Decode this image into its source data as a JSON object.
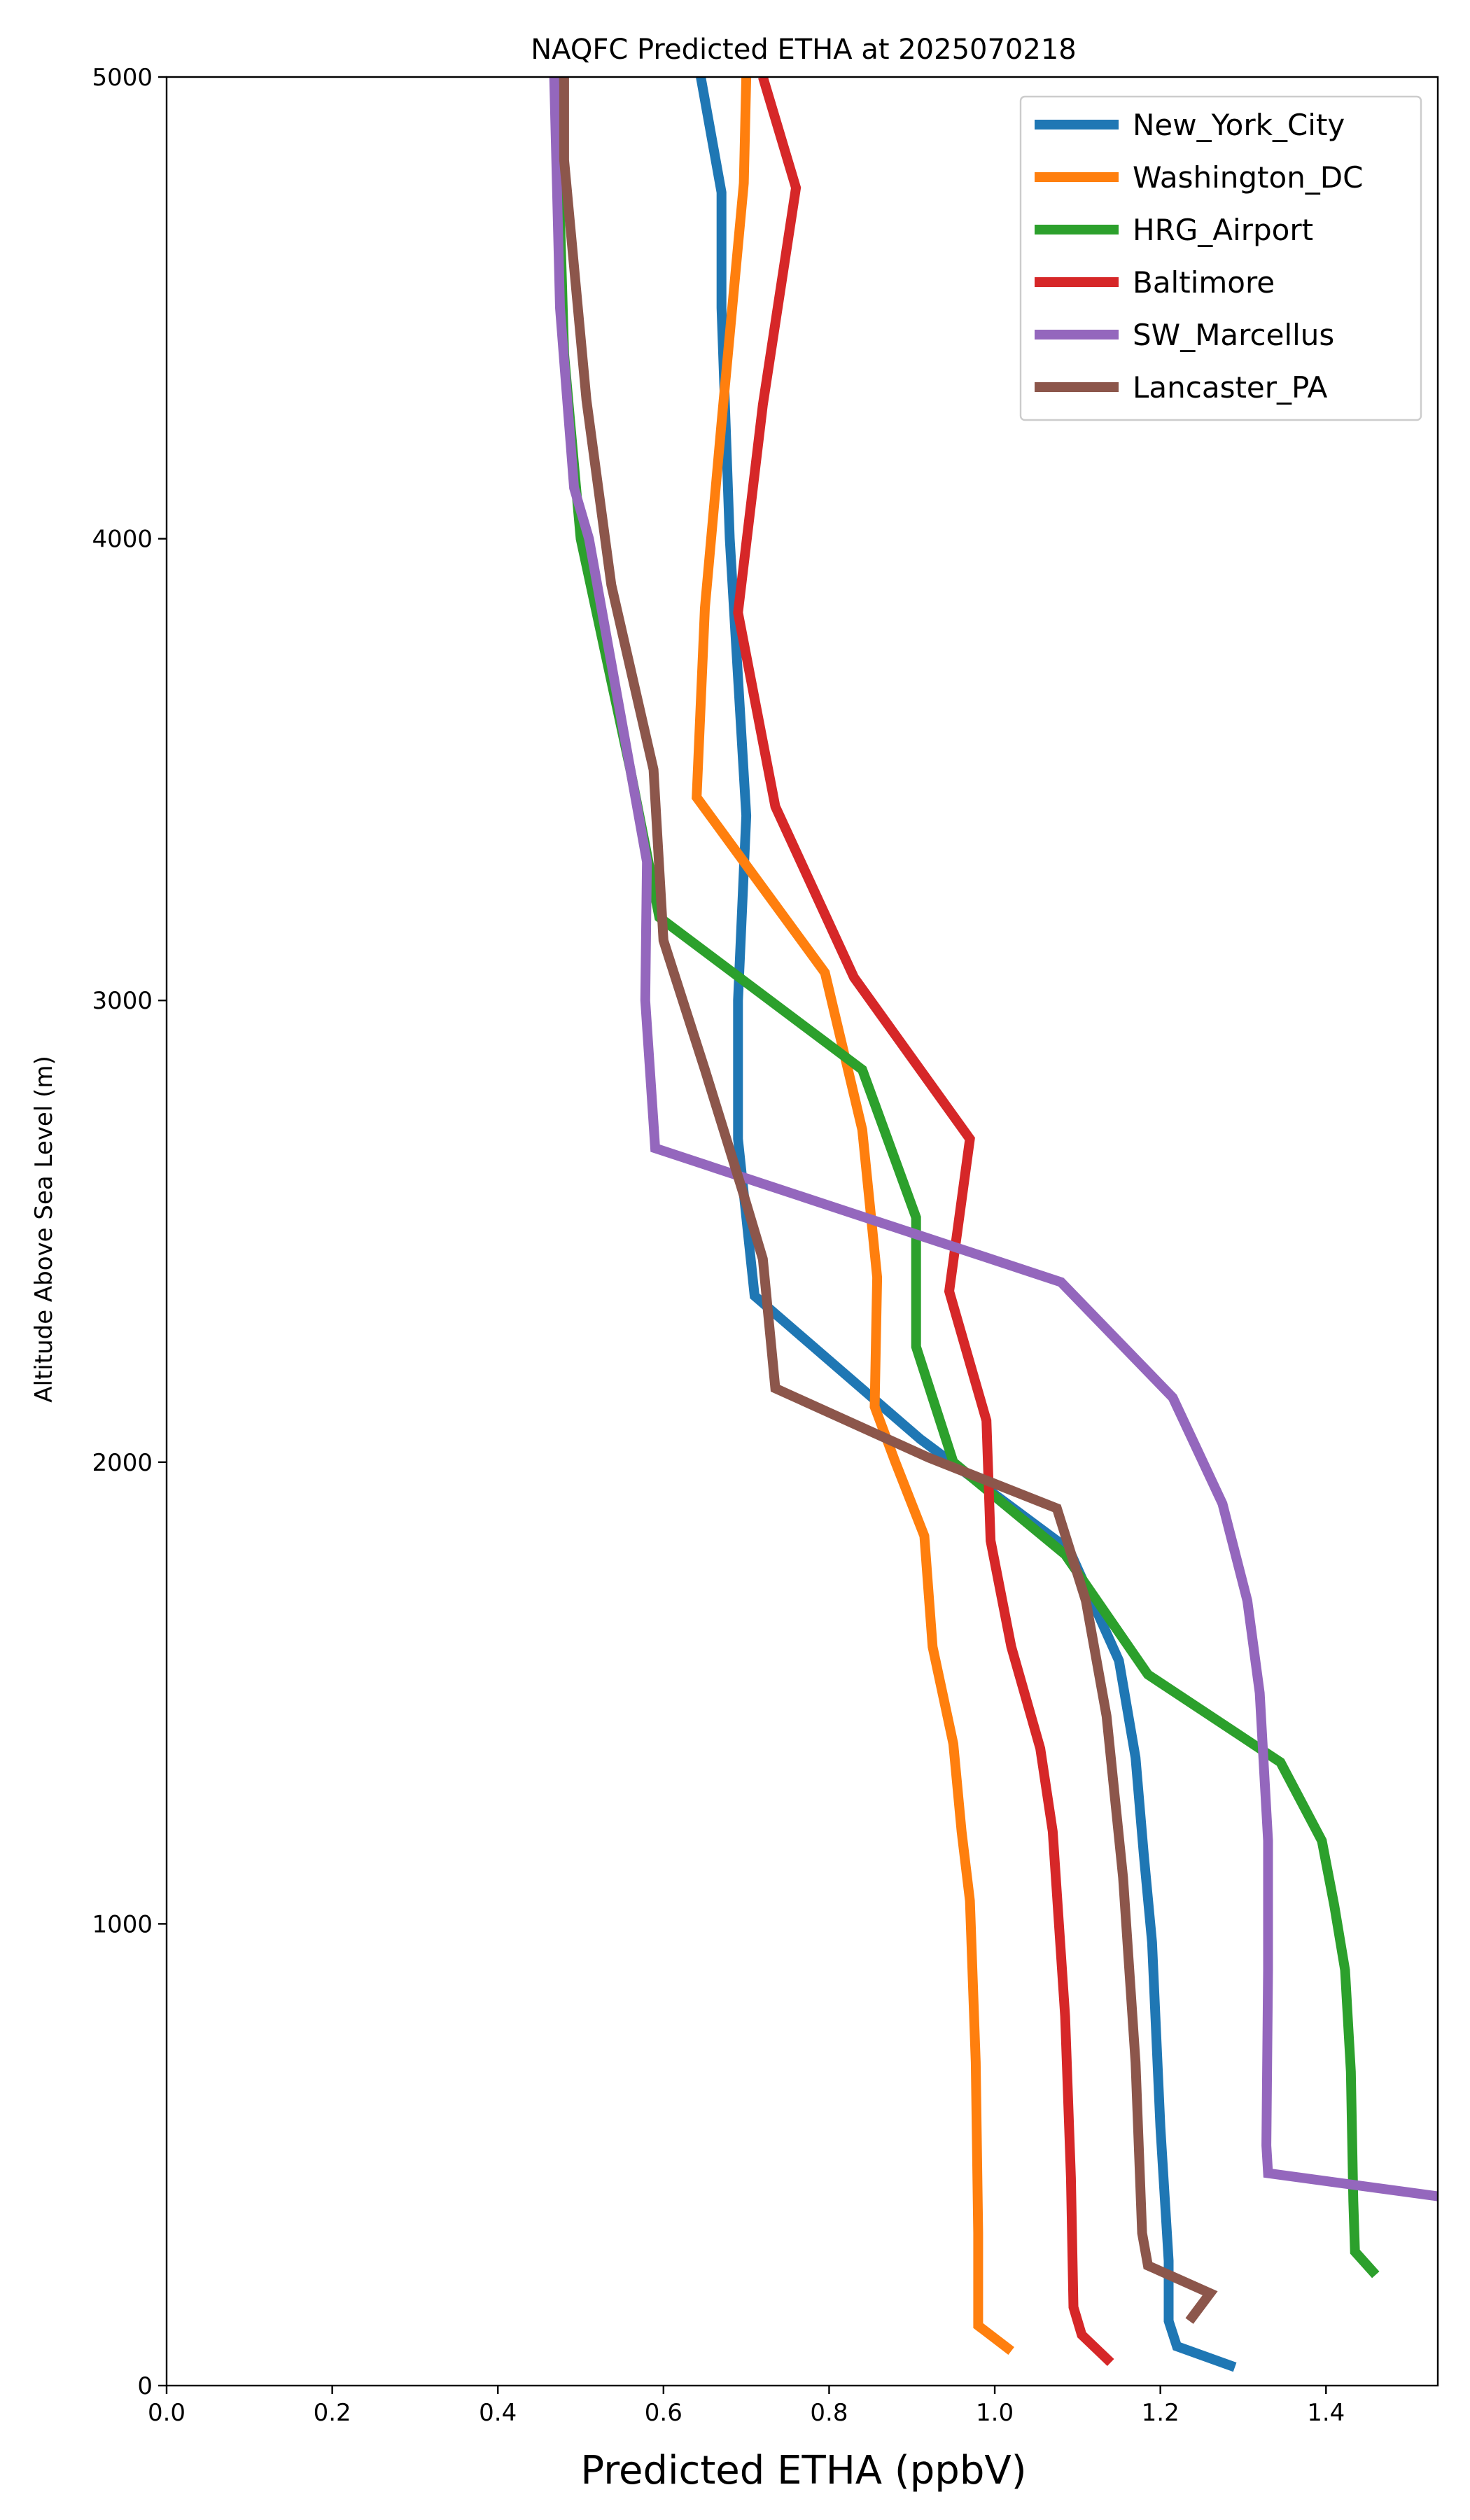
{
  "chart_data": {
    "type": "line",
    "title": "NAQFC Predicted ETHA at 2025070218",
    "xlabel": "Predicted ETHA (ppbV)",
    "ylabel": "Altitude Above Sea Level (m)",
    "xlim": [
      0.0,
      1.535
    ],
    "ylim": [
      0,
      5000
    ],
    "xticks": [
      0.0,
      0.2,
      0.4,
      0.6,
      0.8,
      1.0,
      1.2,
      1.4
    ],
    "xtick_labels": [
      "0.0",
      "0.2",
      "0.4",
      "0.6",
      "0.8",
      "1.0",
      "1.2",
      "1.4"
    ],
    "yticks": [
      0,
      1000,
      2000,
      3000,
      4000,
      5000
    ],
    "ytick_labels": [
      "0",
      "1000",
      "2000",
      "3000",
      "4000",
      "5000"
    ],
    "grid": false,
    "legend_position": "top-right",
    "series": [
      {
        "name": "New_York_City",
        "color": "#1f77b4",
        "points": [
          [
            1.29,
            40
          ],
          [
            1.22,
            85
          ],
          [
            1.21,
            140
          ],
          [
            1.21,
            270
          ],
          [
            1.2,
            560
          ],
          [
            1.19,
            960
          ],
          [
            1.18,
            1150
          ],
          [
            1.17,
            1360
          ],
          [
            1.15,
            1570
          ],
          [
            1.09,
            1810
          ],
          [
            0.91,
            2050
          ],
          [
            0.71,
            2360
          ],
          [
            0.69,
            2700
          ],
          [
            0.69,
            3000
          ],
          [
            0.7,
            3400
          ],
          [
            0.68,
            4000
          ],
          [
            0.67,
            4500
          ],
          [
            0.67,
            4750
          ],
          [
            0.645,
            5000
          ]
        ]
      },
      {
        "name": "Washington_DC",
        "color": "#ff7f0e",
        "points": [
          [
            1.02,
            75
          ],
          [
            0.98,
            130
          ],
          [
            0.98,
            330
          ],
          [
            0.977,
            700
          ],
          [
            0.97,
            1050
          ],
          [
            0.96,
            1200
          ],
          [
            0.95,
            1390
          ],
          [
            0.925,
            1600
          ],
          [
            0.915,
            1840
          ],
          [
            0.88,
            2000
          ],
          [
            0.855,
            2120
          ],
          [
            0.858,
            2400
          ],
          [
            0.84,
            2720
          ],
          [
            0.795,
            3060
          ],
          [
            0.64,
            3440
          ],
          [
            0.65,
            3850
          ],
          [
            0.67,
            4250
          ],
          [
            0.697,
            4770
          ],
          [
            0.7,
            5000
          ]
        ]
      },
      {
        "name": "HRG_Airport",
        "color": "#2ca02c",
        "points": [
          [
            1.46,
            240
          ],
          [
            1.435,
            290
          ],
          [
            1.433,
            400
          ],
          [
            1.43,
            680
          ],
          [
            1.423,
            900
          ],
          [
            1.41,
            1040
          ],
          [
            1.395,
            1180
          ],
          [
            1.345,
            1350
          ],
          [
            1.185,
            1540
          ],
          [
            1.085,
            1800
          ],
          [
            0.95,
            2000
          ],
          [
            0.905,
            2250
          ],
          [
            0.905,
            2530
          ],
          [
            0.84,
            2850
          ],
          [
            0.595,
            3180
          ],
          [
            0.56,
            3500
          ],
          [
            0.5,
            4000
          ],
          [
            0.48,
            4400
          ],
          [
            0.47,
            5000
          ]
        ]
      },
      {
        "name": "Baltimore",
        "color": "#d62728",
        "points": [
          [
            1.14,
            50
          ],
          [
            1.105,
            110
          ],
          [
            1.095,
            170
          ],
          [
            1.092,
            450
          ],
          [
            1.085,
            800
          ],
          [
            1.07,
            1200
          ],
          [
            1.055,
            1380
          ],
          [
            1.02,
            1600
          ],
          [
            0.995,
            1830
          ],
          [
            0.99,
            2090
          ],
          [
            0.945,
            2370
          ],
          [
            0.97,
            2700
          ],
          [
            0.83,
            3050
          ],
          [
            0.735,
            3420
          ],
          [
            0.69,
            3840
          ],
          [
            0.72,
            4290
          ],
          [
            0.76,
            4760
          ],
          [
            0.72,
            5000
          ]
        ]
      },
      {
        "name": "SW_Marcellus",
        "color": "#9467bd",
        "points": [
          [
            1.535,
            410
          ],
          [
            1.33,
            460
          ],
          [
            1.328,
            520
          ],
          [
            1.33,
            900
          ],
          [
            1.33,
            1180
          ],
          [
            1.32,
            1500
          ],
          [
            1.305,
            1700
          ],
          [
            1.275,
            1910
          ],
          [
            1.215,
            2140
          ],
          [
            1.08,
            2390
          ],
          [
            0.59,
            2680
          ],
          [
            0.578,
            3000
          ],
          [
            0.58,
            3300
          ],
          [
            0.51,
            4000
          ],
          [
            0.492,
            4110
          ],
          [
            0.475,
            4500
          ],
          [
            0.468,
            5000
          ]
        ]
      },
      {
        "name": "Lancaster_PA",
        "color": "#8c564b",
        "points": [
          [
            1.235,
            140
          ],
          [
            1.26,
            200
          ],
          [
            1.185,
            260
          ],
          [
            1.178,
            330
          ],
          [
            1.17,
            700
          ],
          [
            1.155,
            1100
          ],
          [
            1.135,
            1450
          ],
          [
            1.11,
            1700
          ],
          [
            1.075,
            1900
          ],
          [
            0.92,
            2010
          ],
          [
            0.735,
            2160
          ],
          [
            0.72,
            2440
          ],
          [
            0.695,
            2590
          ],
          [
            0.65,
            2850
          ],
          [
            0.6,
            3130
          ],
          [
            0.588,
            3500
          ],
          [
            0.537,
            3900
          ],
          [
            0.507,
            4300
          ],
          [
            0.48,
            4820
          ],
          [
            0.48,
            5000
          ]
        ]
      }
    ]
  }
}
